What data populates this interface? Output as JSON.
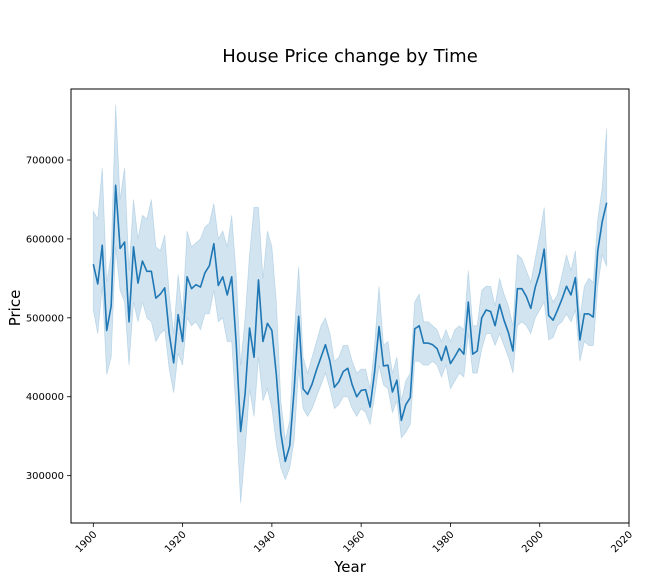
{
  "chart_data": {
    "type": "line",
    "title": "House Price change by Time",
    "xlabel": "Year",
    "ylabel": "Price",
    "xlim": [
      1895,
      2020
    ],
    "ylim": [
      240000,
      790000
    ],
    "x_ticks": [
      1900,
      1920,
      1940,
      1960,
      1980,
      2000,
      2020
    ],
    "y_ticks": [
      300000,
      400000,
      500000,
      600000,
      700000
    ],
    "grid": false,
    "legend": "none",
    "colors": {
      "line": "#1f77b4",
      "band": "#1f77b4"
    },
    "series": [
      {
        "x": [
          1900,
          1901,
          1902,
          1903,
          1904,
          1905,
          1906,
          1907,
          1908,
          1909,
          1910,
          1911,
          1912,
          1913,
          1914,
          1915,
          1916,
          1917,
          1918,
          1919,
          1920,
          1921,
          1922,
          1923,
          1924,
          1925,
          1926,
          1927,
          1928,
          1929,
          1930,
          1931,
          1932,
          1933,
          1934,
          1935,
          1936,
          1937,
          1938,
          1939,
          1940,
          1941,
          1942,
          1943,
          1944,
          1945,
          1946,
          1947,
          1948,
          1949,
          1950,
          1951,
          1952,
          1953,
          1954,
          1955,
          1956,
          1957,
          1958,
          1959,
          1960,
          1961,
          1962,
          1963,
          1964,
          1965,
          1966,
          1967,
          1968,
          1969,
          1970,
          1971,
          1972,
          1973,
          1974,
          1975,
          1976,
          1977,
          1978,
          1979,
          1980,
          1981,
          1982,
          1983,
          1984,
          1985,
          1986,
          1987,
          1988,
          1989,
          1990,
          1991,
          1992,
          1993,
          1994,
          1995,
          1996,
          1997,
          1998,
          1999,
          2000,
          2001,
          2002,
          2003,
          2004,
          2005,
          2006,
          2007,
          2008,
          2009,
          2010,
          2011,
          2012,
          2013,
          2014,
          2015
        ],
        "y": [
          568000,
          543000,
          592000,
          484000,
          515000,
          668000,
          588000,
          596000,
          495000,
          590000,
          544000,
          572000,
          559000,
          559000,
          525000,
          530000,
          538000,
          480000,
          443000,
          504000,
          470000,
          552000,
          537000,
          542000,
          539000,
          557000,
          566000,
          594000,
          541000,
          552000,
          529000,
          552000,
          468000,
          356000,
          404000,
          487000,
          450000,
          548000,
          470000,
          493000,
          484000,
          428000,
          354000,
          318000,
          338000,
          410000,
          502000,
          410000,
          403000,
          416000,
          434000,
          450000,
          466000,
          445000,
          412000,
          419000,
          432000,
          436000,
          415000,
          400000,
          408000,
          409000,
          387000,
          431000,
          489000,
          439000,
          440000,
          406000,
          421000,
          370000,
          390000,
          399000,
          486000,
          490000,
          468000,
          468000,
          466000,
          461000,
          446000,
          464000,
          442000,
          451000,
          461000,
          454000,
          520000,
          454000,
          458000,
          500000,
          510000,
          508000,
          490000,
          517000,
          497000,
          481000,
          458000,
          537000,
          537000,
          527000,
          512000,
          539000,
          557000,
          587000,
          503000,
          497000,
          510000,
          524000,
          540000,
          529000,
          551000,
          472000,
          505000,
          505000,
          501000,
          585000,
          622000,
          646000
        ],
        "lower": [
          510000,
          480000,
          540000,
          428000,
          450000,
          590000,
          535000,
          520000,
          440000,
          520000,
          495000,
          520000,
          500000,
          495000,
          470000,
          480000,
          485000,
          435000,
          405000,
          455000,
          440000,
          500000,
          490000,
          495000,
          485000,
          505000,
          505000,
          535000,
          495000,
          500000,
          470000,
          470000,
          380000,
          265000,
          330000,
          410000,
          375000,
          450000,
          395000,
          410000,
          385000,
          340000,
          310000,
          295000,
          310000,
          345000,
          435000,
          385000,
          375000,
          385000,
          400000,
          415000,
          430000,
          410000,
          385000,
          390000,
          400000,
          400000,
          385000,
          375000,
          385000,
          380000,
          365000,
          400000,
          440000,
          415000,
          410000,
          380000,
          395000,
          348000,
          355000,
          365000,
          445000,
          445000,
          440000,
          440000,
          445000,
          440000,
          425000,
          440000,
          410000,
          420000,
          430000,
          425000,
          480000,
          430000,
          430000,
          460000,
          480000,
          480000,
          465000,
          480000,
          465000,
          450000,
          430000,
          490000,
          495000,
          490000,
          480000,
          500000,
          510000,
          520000,
          472000,
          475000,
          490000,
          495000,
          505000,
          495000,
          510000,
          445000,
          470000,
          465000,
          465000,
          540000,
          580000,
          565000
        ],
        "upper": [
          635000,
          625000,
          690000,
          545000,
          580000,
          770000,
          650000,
          690000,
          560000,
          650000,
          600000,
          630000,
          625000,
          650000,
          590000,
          585000,
          605000,
          530000,
          480000,
          555000,
          505000,
          610000,
          590000,
          595000,
          600000,
          615000,
          620000,
          645000,
          600000,
          610000,
          590000,
          630000,
          555000,
          440000,
          500000,
          580000,
          640000,
          640000,
          550000,
          610000,
          590000,
          520000,
          395000,
          345000,
          370000,
          480000,
          565000,
          450000,
          430000,
          450000,
          470000,
          490000,
          500000,
          480000,
          445000,
          450000,
          465000,
          465000,
          445000,
          430000,
          435000,
          435000,
          410000,
          465000,
          540000,
          465000,
          470000,
          430000,
          450000,
          395000,
          420000,
          430000,
          520000,
          530000,
          495000,
          495000,
          490000,
          485000,
          470000,
          485000,
          470000,
          485000,
          490000,
          485000,
          560000,
          490000,
          490000,
          535000,
          540000,
          540000,
          515000,
          550000,
          530000,
          515000,
          490000,
          580000,
          575000,
          560000,
          545000,
          575000,
          605000,
          640000,
          535000,
          520000,
          530000,
          555000,
          580000,
          560000,
          585000,
          500000,
          540000,
          550000,
          545000,
          625000,
          665000,
          740000
        ]
      }
    ]
  }
}
